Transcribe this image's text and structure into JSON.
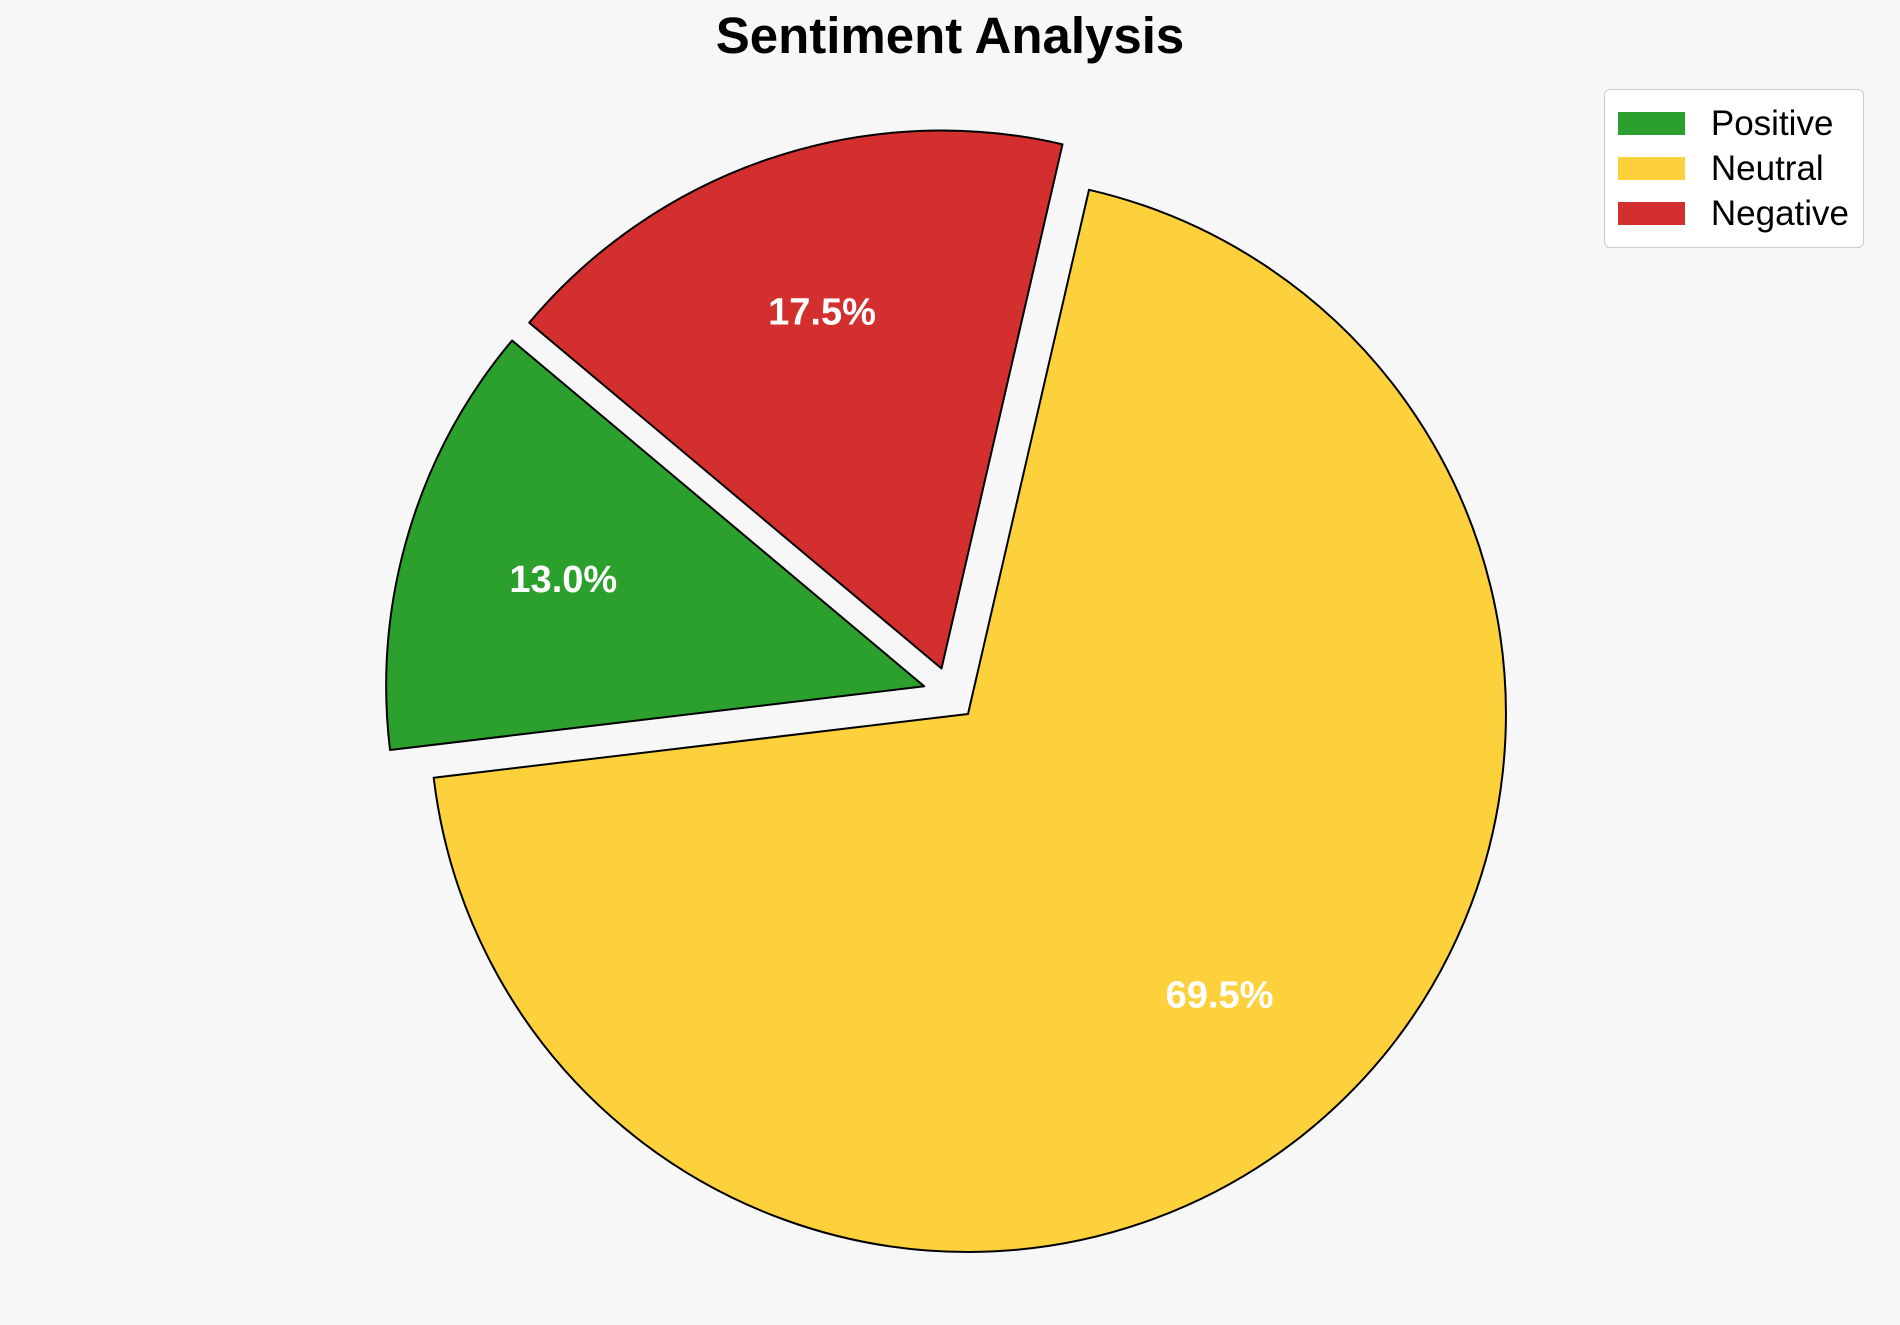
{
  "page": {
    "background": "#f7f7f7"
  },
  "chart_data": {
    "type": "pie",
    "title": "Sentiment Analysis",
    "categories": [
      "Positive",
      "Neutral",
      "Negative"
    ],
    "values": [
      13.0,
      69.5,
      17.5
    ],
    "slice_labels": [
      "13.0%",
      "69.5%",
      "17.5%"
    ],
    "colors": [
      "#2ca02c",
      "#fcd13b",
      "#d32f2f"
    ],
    "start_angle": 140,
    "direction": "counterclockwise",
    "explode": 0.05,
    "pct_distance": 0.7,
    "edge_color": "#000000",
    "edge_width": 2,
    "label_color": "#ffffff",
    "legend": {
      "position": "upper right",
      "items": [
        {
          "label": "Positive",
          "color": "#2ca02c"
        },
        {
          "label": "Neutral",
          "color": "#fcd13b"
        },
        {
          "label": "Negative",
          "color": "#d32f2f"
        }
      ]
    }
  }
}
